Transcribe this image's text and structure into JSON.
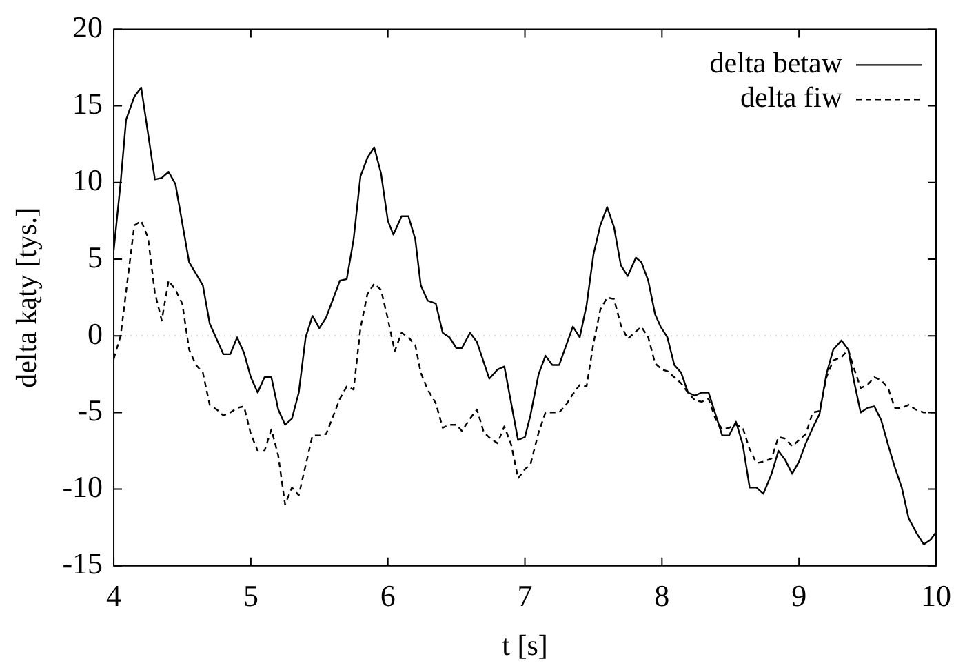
{
  "chart_data": {
    "type": "line",
    "xlabel": "t [s]",
    "ylabel": "delta kąty [tys.]",
    "xlim": [
      4,
      10
    ],
    "xticks": [
      4,
      5,
      6,
      7,
      8,
      9,
      10
    ],
    "ylim": [
      -15,
      20
    ],
    "yticks": [
      -15,
      -10,
      -5,
      0,
      5,
      10,
      15,
      20
    ],
    "grid": false,
    "legend": "top right",
    "marker": "none",
    "ref_lines": [
      {
        "axis": "y",
        "value": 0,
        "color": "#cccccc",
        "line_style": "dotted"
      }
    ],
    "series": [
      {
        "name": "delta betaw",
        "color": "#000000",
        "line_style": "solid",
        "x": [
          4.0,
          4.05,
          4.09,
          4.15,
          4.2,
          4.3,
          4.35,
          4.4,
          4.45,
          4.55,
          4.65,
          4.7,
          4.8,
          4.85,
          4.9,
          4.95,
          5.0,
          5.05,
          5.1,
          5.15,
          5.2,
          5.25,
          5.3,
          5.35,
          5.4,
          5.45,
          5.5,
          5.55,
          5.65,
          5.7,
          5.75,
          5.8,
          5.85,
          5.9,
          5.95,
          6.0,
          6.04,
          6.1,
          6.15,
          6.2,
          6.24,
          6.29,
          6.35,
          6.4,
          6.45,
          6.5,
          6.54,
          6.6,
          6.65,
          6.74,
          6.8,
          6.85,
          6.95,
          7.0,
          7.04,
          7.1,
          7.15,
          7.2,
          7.25,
          7.35,
          7.4,
          7.45,
          7.5,
          7.55,
          7.6,
          7.65,
          7.7,
          7.75,
          7.81,
          7.85,
          7.9,
          7.95,
          7.99,
          8.04,
          8.09,
          8.14,
          8.19,
          8.24,
          8.29,
          8.34,
          8.39,
          8.44,
          8.49,
          8.54,
          8.59,
          8.64,
          8.69,
          8.74,
          8.8,
          8.85,
          8.9,
          8.95,
          9.0,
          9.05,
          9.1,
          9.15,
          9.2,
          9.25,
          9.31,
          9.36,
          9.4,
          9.45,
          9.5,
          9.55,
          9.6,
          9.65,
          9.7,
          9.75,
          9.8,
          9.86,
          9.91,
          9.96,
          10.0
        ],
        "values": [
          5.6,
          10.0,
          14.1,
          15.6,
          16.2,
          10.2,
          10.3,
          10.7,
          9.9,
          4.8,
          3.3,
          0.8,
          -1.2,
          -1.2,
          -0.1,
          -1.1,
          -2.7,
          -3.7,
          -2.7,
          -2.7,
          -4.8,
          -5.8,
          -5.4,
          -3.7,
          -0.1,
          1.3,
          0.5,
          1.2,
          3.6,
          3.7,
          6.3,
          10.4,
          11.6,
          12.3,
          10.6,
          7.5,
          6.6,
          7.8,
          7.8,
          6.3,
          3.3,
          2.3,
          2.1,
          0.2,
          -0.1,
          -0.8,
          -0.8,
          0.2,
          -0.4,
          -2.8,
          -2.2,
          -2.0,
          -6.8,
          -6.6,
          -5.2,
          -2.5,
          -1.3,
          -1.9,
          -1.9,
          0.6,
          -0.1,
          2.0,
          5.3,
          7.2,
          8.4,
          7.1,
          4.6,
          3.9,
          5.1,
          4.8,
          3.6,
          1.4,
          0.6,
          -0.1,
          -1.9,
          -2.4,
          -3.7,
          -3.9,
          -3.7,
          -3.7,
          -5.1,
          -6.5,
          -6.5,
          -5.6,
          -7.1,
          -9.9,
          -9.9,
          -10.3,
          -9.0,
          -7.5,
          -8.1,
          -9.0,
          -8.2,
          -7.0,
          -6.0,
          -5.1,
          -2.5,
          -0.9,
          -0.3,
          -0.9,
          -2.9,
          -5.0,
          -4.7,
          -4.6,
          -5.5,
          -7.1,
          -8.6,
          -9.9,
          -11.9,
          -12.9,
          -13.6,
          -13.3,
          -12.8
        ]
      },
      {
        "name": "delta fiw",
        "color": "#000000",
        "line_style": "dashed",
        "x": [
          4.0,
          4.05,
          4.15,
          4.2,
          4.25,
          4.3,
          4.35,
          4.4,
          4.45,
          4.5,
          4.55,
          4.6,
          4.65,
          4.7,
          4.75,
          4.8,
          4.85,
          4.9,
          4.95,
          5.0,
          5.05,
          5.1,
          5.15,
          5.2,
          5.25,
          5.3,
          5.35,
          5.45,
          5.5,
          5.55,
          5.65,
          5.7,
          5.75,
          5.8,
          5.85,
          5.9,
          5.95,
          6.0,
          6.05,
          6.1,
          6.15,
          6.2,
          6.24,
          6.29,
          6.35,
          6.4,
          6.45,
          6.5,
          6.54,
          6.6,
          6.65,
          6.7,
          6.75,
          6.8,
          6.85,
          6.9,
          6.95,
          7.0,
          7.04,
          7.1,
          7.15,
          7.2,
          7.25,
          7.3,
          7.35,
          7.4,
          7.45,
          7.5,
          7.55,
          7.6,
          7.65,
          7.7,
          7.75,
          7.8,
          7.85,
          7.9,
          7.95,
          8.0,
          8.04,
          8.09,
          8.14,
          8.19,
          8.24,
          8.29,
          8.34,
          8.39,
          8.44,
          8.49,
          8.54,
          8.59,
          8.64,
          8.69,
          8.74,
          8.8,
          8.85,
          8.9,
          8.95,
          9.0,
          9.05,
          9.1,
          9.15,
          9.2,
          9.25,
          9.31,
          9.36,
          9.4,
          9.45,
          9.5,
          9.55,
          9.6,
          9.65,
          9.7,
          9.75,
          9.8,
          9.85,
          9.91,
          10.0
        ],
        "values": [
          -1.5,
          0,
          7.2,
          7.5,
          6.4,
          2.8,
          1.0,
          3.6,
          3.0,
          2.1,
          -0.9,
          -1.9,
          -2.4,
          -4.5,
          -4.8,
          -5.2,
          -5.0,
          -4.7,
          -4.6,
          -6.4,
          -7.5,
          -7.5,
          -6.1,
          -7.8,
          -11.0,
          -9.9,
          -10.4,
          -6.5,
          -6.5,
          -6.4,
          -4.1,
          -3.3,
          -3.5,
          0.5,
          2.7,
          3.4,
          3.0,
          1.1,
          -1.0,
          0.2,
          -0.1,
          -0.6,
          -2.4,
          -3.5,
          -4.4,
          -6.0,
          -5.8,
          -5.8,
          -6.2,
          -5.4,
          -4.8,
          -6.3,
          -6.7,
          -7.0,
          -5.9,
          -7.1,
          -9.3,
          -8.7,
          -8.4,
          -6.3,
          -5.0,
          -5.0,
          -5.0,
          -4.5,
          -3.8,
          -3.2,
          -3.3,
          -0.5,
          1.7,
          2.5,
          2.4,
          0.7,
          -0.2,
          0.2,
          0.6,
          -0.1,
          -1.8,
          -2.2,
          -2.3,
          -2.7,
          -3.1,
          -3.7,
          -4.2,
          -4.3,
          -4.1,
          -5.4,
          -6.1,
          -6.0,
          -5.8,
          -6.0,
          -7.4,
          -8.3,
          -8.2,
          -8.0,
          -6.6,
          -6.7,
          -7.2,
          -6.8,
          -6.4,
          -5.0,
          -4.9,
          -2.7,
          -1.6,
          -1.4,
          -0.9,
          -2.1,
          -3.4,
          -3.2,
          -2.7,
          -2.9,
          -3.4,
          -4.7,
          -4.7,
          -4.5,
          -4.8,
          -5.0,
          -5.0
        ]
      }
    ]
  }
}
